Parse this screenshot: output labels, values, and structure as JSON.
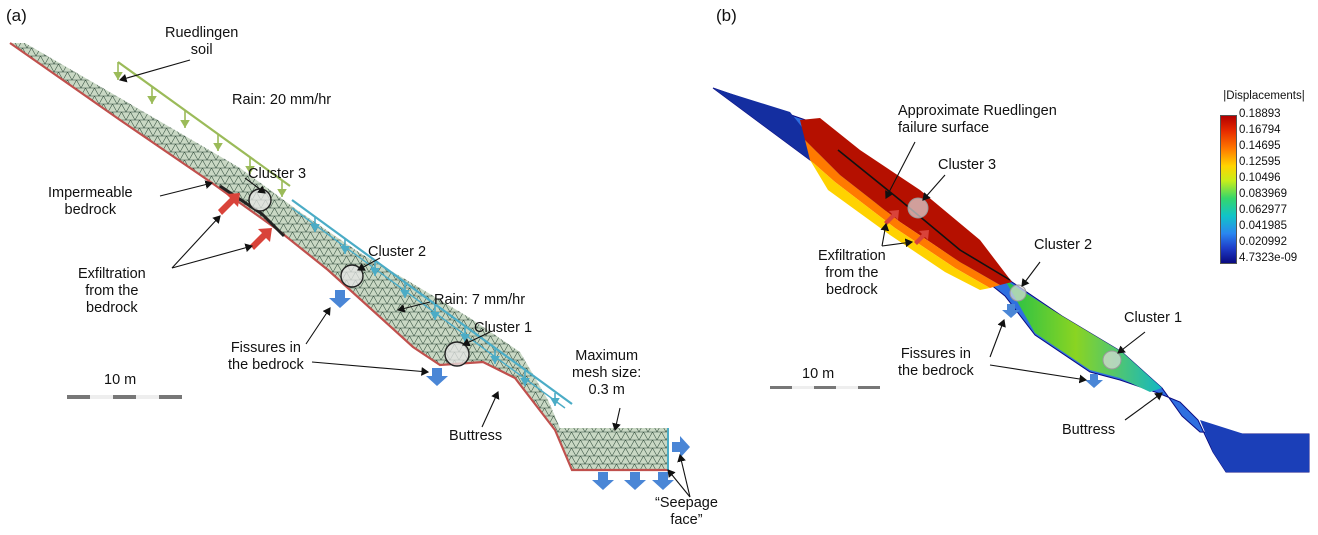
{
  "panel_a": {
    "tag": "(a)",
    "labels": {
      "soil": [
        "Ruedlingen",
        "soil"
      ],
      "rain_upper": "Rain: 20 mm/hr",
      "cluster3": "Cluster 3",
      "bedrock": [
        "Impermeable",
        "bedrock"
      ],
      "cluster2": "Cluster 2",
      "exfiltration": [
        "Exfiltration",
        "from the",
        "bedrock"
      ],
      "rain_lower": "Rain: 7 mm/hr",
      "cluster1": "Cluster 1",
      "fissures": [
        "Fissures in",
        "the bedrock"
      ],
      "mesh": [
        "Maximum",
        "mesh size:",
        "0.3 m"
      ],
      "scale": "10 m",
      "buttress": "Buttress",
      "seepage": [
        "“Seepage",
        "face”"
      ]
    }
  },
  "panel_b": {
    "tag": "(b)",
    "labels": {
      "failure": [
        "Approximate Ruedlingen",
        "failure surface"
      ],
      "cluster3": "Cluster 3",
      "exfiltration": [
        "Exfiltration",
        "from the",
        "bedrock"
      ],
      "cluster2": "Cluster 2",
      "cluster1": "Cluster 1",
      "fissures": [
        "Fissures in",
        "the bedrock"
      ],
      "scale": "10 m",
      "buttress": "Buttress"
    },
    "colorbar": {
      "title": "|Displacements|",
      "ticks": [
        "0.18893",
        "0.16794",
        "0.14695",
        "0.12595",
        "0.10496",
        "0.083969",
        "0.062977",
        "0.041985",
        "0.020992",
        "4.7323e-09"
      ]
    }
  },
  "colors": {
    "mesh_fill": "#c9d8c4",
    "bedrock_line": "#c0504d",
    "rain_upper": "#9bbb59",
    "rain_lower": "#4bacc6",
    "inflow_arrow": "#d9433a",
    "outflow_arrow": "#4a86d6"
  }
}
